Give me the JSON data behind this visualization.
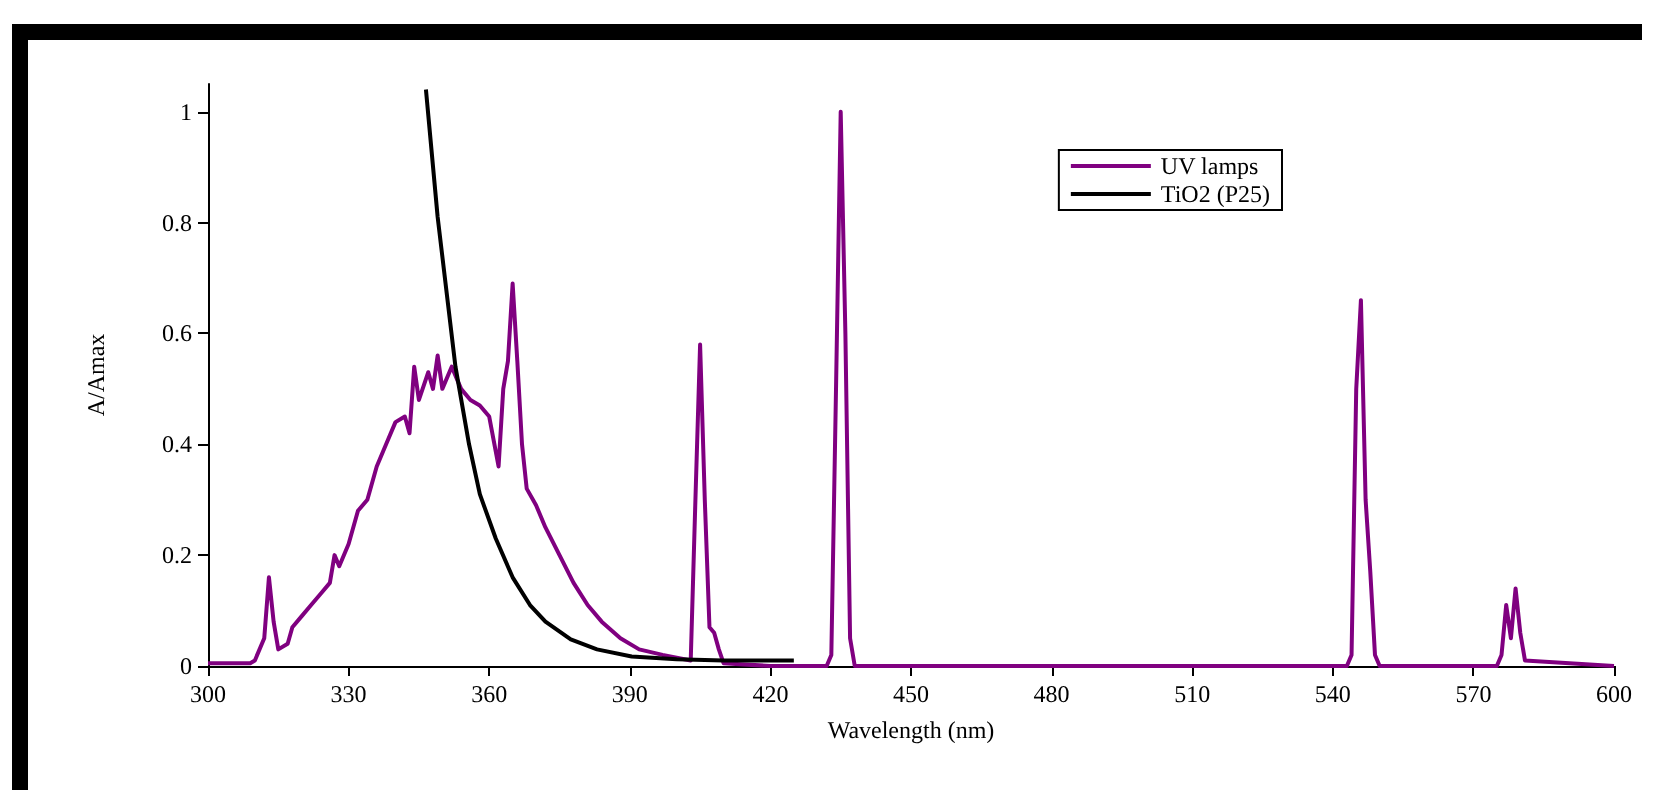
{
  "chart_data": {
    "type": "line",
    "xlabel": "Wavelength (nm)",
    "ylabel": "A/Amax",
    "xlim": [
      300,
      600
    ],
    "xticks": [
      300,
      330,
      360,
      390,
      420,
      450,
      480,
      510,
      540,
      570,
      600
    ],
    "ylim": [
      0,
      1.05
    ],
    "yticks": [
      0,
      0.2,
      0.4,
      0.6,
      0.8,
      1
    ],
    "grid": false,
    "legend": "top right",
    "marker": "none",
    "line_style": "solid",
    "series": [
      {
        "name": "UV lamps",
        "color": "#800080",
        "x": [
          300,
          305,
          309,
          310,
          312,
          313,
          314,
          315,
          317,
          318,
          320,
          322,
          324,
          326,
          327,
          328,
          330,
          332,
          334,
          336,
          338,
          340,
          342,
          343,
          344,
          345,
          347,
          348,
          349,
          350,
          352,
          354,
          356,
          358,
          360,
          362,
          363,
          364,
          365,
          366,
          367,
          368,
          370,
          372,
          375,
          378,
          381,
          384,
          388,
          392,
          397,
          403,
          404,
          405,
          406,
          407,
          408,
          409,
          410,
          420,
          432,
          433,
          434,
          435,
          436,
          437,
          438,
          543,
          544,
          545,
          546,
          547,
          548,
          549,
          550,
          575,
          576,
          577,
          578,
          579,
          580,
          581,
          600
        ],
        "values": [
          0.005,
          0.005,
          0.005,
          0.01,
          0.05,
          0.16,
          0.08,
          0.03,
          0.04,
          0.07,
          0.09,
          0.11,
          0.13,
          0.15,
          0.2,
          0.18,
          0.22,
          0.28,
          0.3,
          0.36,
          0.4,
          0.44,
          0.45,
          0.42,
          0.54,
          0.48,
          0.53,
          0.5,
          0.56,
          0.5,
          0.54,
          0.5,
          0.48,
          0.47,
          0.45,
          0.36,
          0.5,
          0.55,
          0.69,
          0.55,
          0.4,
          0.32,
          0.29,
          0.25,
          0.2,
          0.15,
          0.11,
          0.08,
          0.05,
          0.03,
          0.02,
          0.01,
          0.3,
          0.58,
          0.3,
          0.07,
          0.06,
          0.03,
          0.005,
          0,
          0,
          0.02,
          0.5,
          1,
          0.6,
          0.05,
          0,
          0,
          0.02,
          0.5,
          0.66,
          0.3,
          0.17,
          0.02,
          0,
          0,
          0.02,
          0.11,
          0.05,
          0.14,
          0.06,
          0.01,
          0
        ]
      },
      {
        "name": "TiO2 (P25)",
        "color": "#000000",
        "x": [
          346.5,
          349,
          352.8,
          355.7,
          358,
          361.4,
          365,
          368.7,
          372,
          377.4,
          383,
          390.4,
          400,
          410,
          425
        ],
        "values": [
          1.04,
          0.81,
          0.54,
          0.4,
          0.31,
          0.23,
          0.16,
          0.11,
          0.08,
          0.048,
          0.03,
          0.017,
          0.012,
          0.01,
          0.01
        ]
      }
    ]
  }
}
